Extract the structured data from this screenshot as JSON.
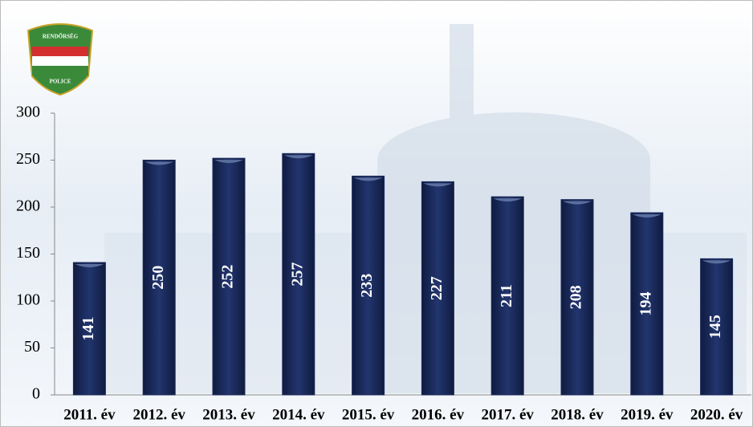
{
  "logo": {
    "top": "RENDŐRSÉG",
    "bottom": "POLICE"
  },
  "chart_data": {
    "type": "bar",
    "categories": [
      "2011. év",
      "2012. év",
      "2013. év",
      "2014. év",
      "2015. év",
      "2016. év",
      "2017. év",
      "2018. év",
      "2019. év",
      "2020. év"
    ],
    "values": [
      141,
      250,
      252,
      257,
      233,
      227,
      211,
      208,
      194,
      145
    ],
    "color": "#1c2b5c",
    "ylim": [
      0,
      300
    ],
    "yticks": [
      0,
      50,
      100,
      150,
      200,
      250,
      300
    ],
    "grid": false
  }
}
